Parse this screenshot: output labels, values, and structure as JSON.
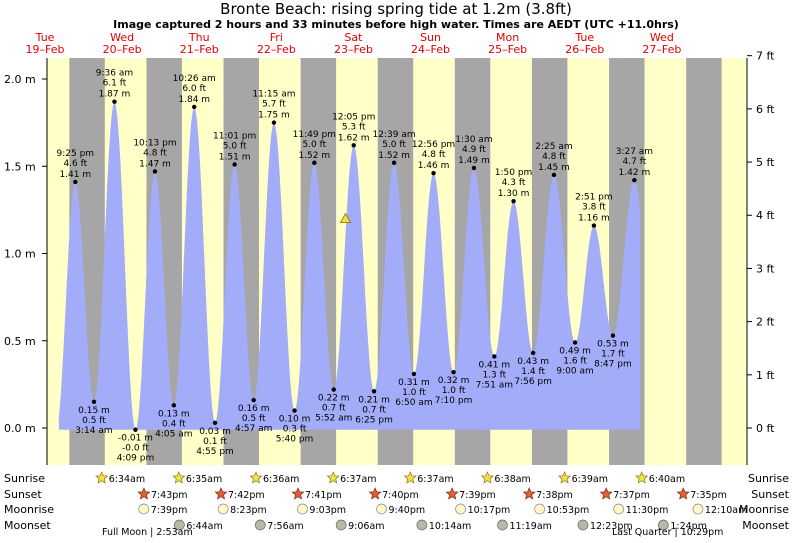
{
  "header": {
    "title": "Bronte Beach: rising  spring tide at 1.2m (3.8ft)",
    "subtitle": "Image captured 2 hours and 33 minutes before high water. Times are AEDT (UTC +11.0hrs)"
  },
  "days": [
    {
      "name": "Tue",
      "date": "19–Feb"
    },
    {
      "name": "Wed",
      "date": "20–Feb"
    },
    {
      "name": "Thu",
      "date": "21–Feb"
    },
    {
      "name": "Fri",
      "date": "22–Feb"
    },
    {
      "name": "Sat",
      "date": "23–Feb"
    },
    {
      "name": "Sun",
      "date": "24–Feb"
    },
    {
      "name": "Mon",
      "date": "25–Feb"
    },
    {
      "name": "Tue",
      "date": "26–Feb"
    },
    {
      "name": "Wed",
      "date": "27–Feb"
    }
  ],
  "chart_data": {
    "type": "area",
    "title": "Bronte Beach: rising  spring tide at 1.2m (3.8ft)",
    "ylabel_left": "m",
    "ylabel_right": "ft",
    "ylim": [
      -0.12,
      2.12
    ],
    "yticks_m": [
      0.0,
      0.5,
      1.0,
      1.5,
      2.0
    ],
    "ytick_labels_m": [
      "0.0 m",
      "0.5 m",
      "1.0 m",
      "1.5 m",
      "2.0 m"
    ],
    "yticks_ft": [
      0,
      1,
      2,
      3,
      4,
      5,
      6,
      7
    ],
    "ytick_labels_ft": [
      "0 ft",
      "1 ft",
      "2 ft",
      "3 ft",
      "4 ft",
      "5 ft",
      "6 ft",
      "7 ft"
    ],
    "fill_color": "#a3acf8",
    "day_color": "#ffffc8",
    "night_color": "#a6a6a6",
    "current_marker": {
      "height_m": 1.2,
      "color": "#f0e040"
    },
    "tides": [
      {
        "kind": "high",
        "time": "9:25 pm",
        "ft": "4.6 ft",
        "m": "1.41 m",
        "height": 1.41
      },
      {
        "kind": "low",
        "time": "3:14 am",
        "ft": "0.5 ft",
        "m": "0.15 m",
        "height": 0.15
      },
      {
        "kind": "high",
        "time": "9:36 am",
        "ft": "6.1 ft",
        "m": "1.87 m",
        "height": 1.87
      },
      {
        "kind": "low",
        "time": "4:09 pm",
        "ft": "-0.0 ft",
        "m": "-0.01 m",
        "height": -0.01
      },
      {
        "kind": "high",
        "time": "10:13 pm",
        "ft": "4.8 ft",
        "m": "1.47 m",
        "height": 1.47
      },
      {
        "kind": "low",
        "time": "4:05 am",
        "ft": "0.4 ft",
        "m": "0.13 m",
        "height": 0.13
      },
      {
        "kind": "high",
        "time": "10:26 am",
        "ft": "6.0 ft",
        "m": "1.84 m",
        "height": 1.84
      },
      {
        "kind": "low",
        "time": "4:55 pm",
        "ft": "0.1 ft",
        "m": "0.03 m",
        "height": 0.03
      },
      {
        "kind": "high",
        "time": "11:01 pm",
        "ft": "5.0 ft",
        "m": "1.51 m",
        "height": 1.51
      },
      {
        "kind": "low",
        "time": "4:57 am",
        "ft": "0.5 ft",
        "m": "0.16 m",
        "height": 0.16
      },
      {
        "kind": "high",
        "time": "11:15 am",
        "ft": "5.7 ft",
        "m": "1.75 m",
        "height": 1.75
      },
      {
        "kind": "low",
        "time": "5:40 pm",
        "ft": "0.3 ft",
        "m": "0.10 m",
        "height": 0.1
      },
      {
        "kind": "high",
        "time": "11:49 pm",
        "ft": "5.0 ft",
        "m": "1.52 m",
        "height": 1.52
      },
      {
        "kind": "low",
        "time": "5:52 am",
        "ft": "0.7 ft",
        "m": "0.22 m",
        "height": 0.22
      },
      {
        "kind": "high",
        "time": "12:05 pm",
        "ft": "5.3 ft",
        "m": "1.62 m",
        "height": 1.62
      },
      {
        "kind": "low",
        "time": "6:25 pm",
        "ft": "0.7 ft",
        "m": "0.21 m",
        "height": 0.21
      },
      {
        "kind": "high",
        "time": "12:39 am",
        "ft": "5.0 ft",
        "m": "1.52 m",
        "height": 1.52
      },
      {
        "kind": "low",
        "time": "6:50 am",
        "ft": "1.0 ft",
        "m": "0.31 m",
        "height": 0.31
      },
      {
        "kind": "high",
        "time": "12:56 pm",
        "ft": "4.8 ft",
        "m": "1.46 m",
        "height": 1.46
      },
      {
        "kind": "low",
        "time": "7:10 pm",
        "ft": "1.0 ft",
        "m": "0.32 m",
        "height": 0.32
      },
      {
        "kind": "high",
        "time": "1:30 am",
        "ft": "4.9 ft",
        "m": "1.49 m",
        "height": 1.49
      },
      {
        "kind": "low",
        "time": "7:51 am",
        "ft": "1.3 ft",
        "m": "0.41 m",
        "height": 0.41
      },
      {
        "kind": "high",
        "time": "1:50 pm",
        "ft": "4.3 ft",
        "m": "1.30 m",
        "height": 1.3
      },
      {
        "kind": "low",
        "time": "7:56 pm",
        "ft": "1.4 ft",
        "m": "0.43 m",
        "height": 0.43
      },
      {
        "kind": "high",
        "time": "2:25 am",
        "ft": "4.8 ft",
        "m": "1.45 m",
        "height": 1.45
      },
      {
        "kind": "low",
        "time": "9:00 am",
        "ft": "1.6 ft",
        "m": "0.49 m",
        "height": 0.49
      },
      {
        "kind": "high",
        "time": "2:51 pm",
        "ft": "3.8 ft",
        "m": "1.16 m",
        "height": 1.16
      },
      {
        "kind": "low",
        "time": "8:47 pm",
        "ft": "1.7 ft",
        "m": "0.53 m",
        "height": 0.53
      },
      {
        "kind": "high",
        "time": "3:27 am",
        "ft": "4.7 ft",
        "m": "1.42 m",
        "height": 1.42
      }
    ]
  },
  "astro": {
    "row_labels": {
      "sunrise": "Sunrise",
      "sunset": "Sunset",
      "moonrise": "Moonrise",
      "moonset": "Moonset"
    },
    "sunrise": [
      "6:34am",
      "6:35am",
      "6:36am",
      "6:37am",
      "6:37am",
      "6:38am",
      "6:39am",
      "6:40am"
    ],
    "sunset": [
      "7:43pm",
      "7:42pm",
      "7:41pm",
      "7:40pm",
      "7:39pm",
      "7:38pm",
      "7:37pm",
      "7:35pm"
    ],
    "moonrise": [
      "7:39pm",
      "8:23pm",
      "9:03pm",
      "9:40pm",
      "10:17pm",
      "10:53pm",
      "11:30pm",
      "12:10am"
    ],
    "moonset": [
      "6:44am",
      "7:56am",
      "9:06am",
      "10:14am",
      "11:19am",
      "12:23pm",
      "1:24pm"
    ],
    "phase_notes": [
      "Full Moon | 2:53am",
      "Last Quarter | 10:29pm"
    ]
  }
}
